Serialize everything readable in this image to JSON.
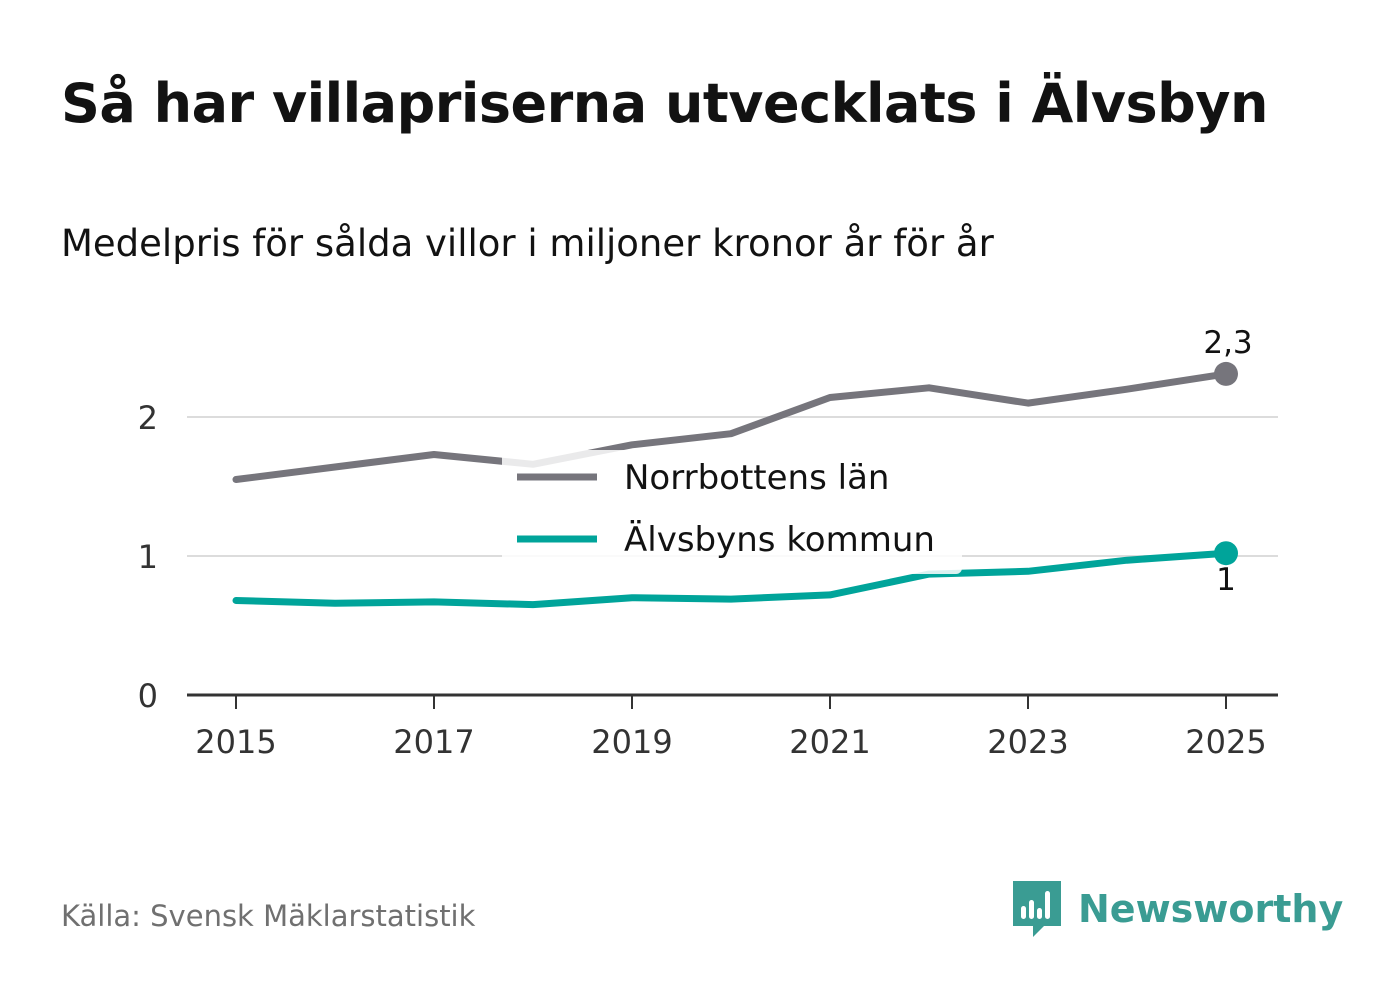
{
  "title": "Så har villapriserna utvecklats i Älvsbyn",
  "subtitle": "Medelpris för sålda villor i miljoner kronor år för år",
  "source": "Källa: Svensk Mäklarstatistik",
  "brand": {
    "name": "Newsworthy",
    "logo_icon": "bar-chart-speech-bubble-icon"
  },
  "colors": {
    "norrbotten": "#76757c",
    "alvsbyn": "#00a49a",
    "grid": "#dcdcdc",
    "axis": "#333333",
    "brand": "#3a9c93"
  },
  "chart_data": {
    "type": "line",
    "x": [
      2015,
      2016,
      2017,
      2018,
      2019,
      2020,
      2021,
      2022,
      2023,
      2024,
      2025
    ],
    "xticks": [
      2015,
      2017,
      2019,
      2021,
      2023,
      2025
    ],
    "xtick_labels": [
      "2015",
      "2017",
      "2019",
      "2021",
      "2023",
      "2025"
    ],
    "yticks": [
      0,
      1,
      2
    ],
    "ytick_labels": [
      "0",
      "1",
      "2"
    ],
    "ylim": [
      0,
      2.5
    ],
    "xlim": [
      2014.5,
      2025.5
    ],
    "grid": true,
    "legend_position": "center",
    "series": [
      {
        "name": "Norrbottens län",
        "key": "norrbotten",
        "values": [
          1.55,
          1.64,
          1.73,
          1.66,
          1.8,
          1.88,
          2.14,
          2.21,
          2.1,
          2.2,
          2.31
        ],
        "end_label": "2,3",
        "end_label_position": "above"
      },
      {
        "name": "Älvsbyns kommun",
        "key": "alvsbyn",
        "values": [
          0.68,
          0.66,
          0.67,
          0.65,
          0.7,
          0.69,
          0.72,
          0.87,
          0.89,
          0.97,
          1.02
        ],
        "end_label": "1",
        "end_label_position": "below"
      }
    ]
  }
}
